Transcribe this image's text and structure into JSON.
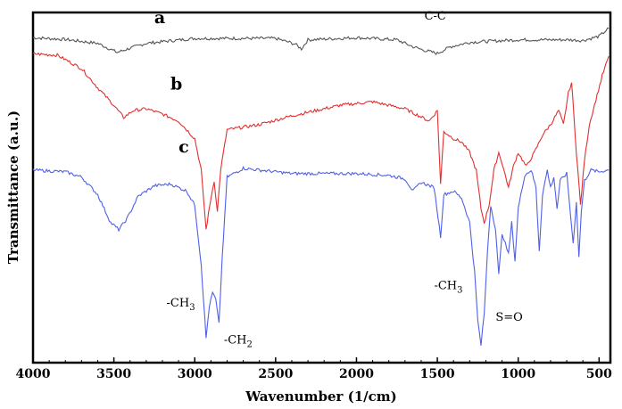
{
  "chart_data": {
    "type": "line",
    "xlabel": "Wavenumber (1/cm)",
    "ylabel": "Transmittance (a.u.)",
    "xlim": [
      4000,
      430
    ],
    "ylim": [
      0,
      100
    ],
    "x_ticks": [
      4000,
      3500,
      3000,
      2500,
      2000,
      1500,
      1000,
      500
    ],
    "y_ticks_shown": false,
    "legend": "none",
    "series": [
      {
        "name": "a",
        "color": "#555555",
        "points": [
          [
            4000,
            92.8
          ],
          [
            3800,
            92.3
          ],
          [
            3600,
            91.2
          ],
          [
            3480,
            88.6
          ],
          [
            3400,
            89.8
          ],
          [
            3300,
            91.2
          ],
          [
            3000,
            92.6
          ],
          [
            2500,
            92.6
          ],
          [
            2380,
            91.0
          ],
          [
            2340,
            89.6
          ],
          [
            2300,
            92.2
          ],
          [
            2000,
            92.8
          ],
          [
            1750,
            92.2
          ],
          [
            1650,
            90.2
          ],
          [
            1580,
            89.2
          ],
          [
            1500,
            88.3
          ],
          [
            1420,
            90.2
          ],
          [
            1300,
            91.5
          ],
          [
            1000,
            92.2
          ],
          [
            700,
            92.2
          ],
          [
            600,
            92.0
          ],
          [
            500,
            93.2
          ],
          [
            440,
            95.5
          ]
        ]
      },
      {
        "name": "b",
        "color": "#e03030",
        "points": [
          [
            4000,
            88.2
          ],
          [
            3850,
            87.8
          ],
          [
            3700,
            84.0
          ],
          [
            3600,
            78.5
          ],
          [
            3500,
            73.5
          ],
          [
            3440,
            70.0
          ],
          [
            3380,
            72.0
          ],
          [
            3300,
            72.5
          ],
          [
            3200,
            71.0
          ],
          [
            3100,
            69.0
          ],
          [
            3000,
            64.0
          ],
          [
            2960,
            55.0
          ],
          [
            2930,
            38.0
          ],
          [
            2900,
            47.0
          ],
          [
            2880,
            52.0
          ],
          [
            2860,
            43.0
          ],
          [
            2840,
            55.0
          ],
          [
            2800,
            66.5
          ],
          [
            2600,
            68.0
          ],
          [
            2400,
            70.5
          ],
          [
            2100,
            73.5
          ],
          [
            1900,
            74.5
          ],
          [
            1700,
            72.5
          ],
          [
            1550,
            69.0
          ],
          [
            1500,
            72.0
          ],
          [
            1480,
            51.0
          ],
          [
            1460,
            66.0
          ],
          [
            1400,
            64.0
          ],
          [
            1350,
            63.0
          ],
          [
            1300,
            60.0
          ],
          [
            1260,
            55.0
          ],
          [
            1230,
            44.0
          ],
          [
            1210,
            40.0
          ],
          [
            1180,
            45.0
          ],
          [
            1150,
            55.0
          ],
          [
            1120,
            60.0
          ],
          [
            1100,
            57.0
          ],
          [
            1060,
            50.0
          ],
          [
            1030,
            56.0
          ],
          [
            1000,
            60.0
          ],
          [
            950,
            56.0
          ],
          [
            900,
            60.0
          ],
          [
            850,
            65.0
          ],
          [
            800,
            68.0
          ],
          [
            750,
            72.0
          ],
          [
            720,
            68.0
          ],
          [
            690,
            77.0
          ],
          [
            670,
            80.0
          ],
          [
            640,
            60.0
          ],
          [
            615,
            45.0
          ],
          [
            590,
            58.0
          ],
          [
            560,
            68.0
          ],
          [
            520,
            75.0
          ],
          [
            480,
            82.0
          ],
          [
            440,
            87.5
          ]
        ]
      },
      {
        "name": "c",
        "color": "#5060e8",
        "points": [
          [
            4000,
            55.0
          ],
          [
            3800,
            54.5
          ],
          [
            3700,
            53.0
          ],
          [
            3600,
            48.0
          ],
          [
            3520,
            40.0
          ],
          [
            3470,
            38.0
          ],
          [
            3420,
            41.0
          ],
          [
            3350,
            47.5
          ],
          [
            3250,
            50.5
          ],
          [
            3150,
            51.0
          ],
          [
            3050,
            49.0
          ],
          [
            3000,
            45.0
          ],
          [
            2960,
            28.0
          ],
          [
            2930,
            7.0
          ],
          [
            2910,
            16.0
          ],
          [
            2890,
            20.0
          ],
          [
            2870,
            18.0
          ],
          [
            2850,
            11.0
          ],
          [
            2830,
            30.0
          ],
          [
            2800,
            53.0
          ],
          [
            2700,
            55.5
          ],
          [
            2400,
            54.0
          ],
          [
            2000,
            54.0
          ],
          [
            1800,
            53.5
          ],
          [
            1700,
            52.5
          ],
          [
            1650,
            49.0
          ],
          [
            1600,
            51.5
          ],
          [
            1520,
            50.0
          ],
          [
            1480,
            36.0
          ],
          [
            1460,
            48.0
          ],
          [
            1400,
            49.0
          ],
          [
            1350,
            47.0
          ],
          [
            1300,
            40.0
          ],
          [
            1270,
            26.0
          ],
          [
            1250,
            12.0
          ],
          [
            1230,
            5.0
          ],
          [
            1210,
            14.0
          ],
          [
            1190,
            32.0
          ],
          [
            1170,
            45.0
          ],
          [
            1140,
            38.0
          ],
          [
            1120,
            25.0
          ],
          [
            1100,
            37.0
          ],
          [
            1080,
            34.0
          ],
          [
            1060,
            31.0
          ],
          [
            1040,
            40.0
          ],
          [
            1020,
            29.0
          ],
          [
            1000,
            44.0
          ],
          [
            960,
            53.5
          ],
          [
            920,
            55.0
          ],
          [
            890,
            50.0
          ],
          [
            870,
            32.0
          ],
          [
            850,
            48.0
          ],
          [
            820,
            55.0
          ],
          [
            800,
            50.0
          ],
          [
            780,
            53.0
          ],
          [
            760,
            44.0
          ],
          [
            740,
            52.0
          ],
          [
            700,
            54.0
          ],
          [
            680,
            44.0
          ],
          [
            660,
            34.0
          ],
          [
            640,
            46.0
          ],
          [
            625,
            30.0
          ],
          [
            610,
            43.0
          ],
          [
            590,
            52.0
          ],
          [
            550,
            55.0
          ],
          [
            500,
            54.5
          ],
          [
            440,
            55.0
          ]
        ]
      }
    ],
    "annotations": [
      {
        "base": "C-C",
        "sub": "",
        "tail": "",
        "x": 1580,
        "y": 98.0
      },
      {
        "base": "-CH",
        "sub": "3",
        "tail": "",
        "x": 3175,
        "y": 16.0
      },
      {
        "base": "-CH",
        "sub": "2",
        "tail": "",
        "x": 2820,
        "y": 5.5
      },
      {
        "base": "-CH",
        "sub": "3",
        "tail": "",
        "x": 1520,
        "y": 21.0
      },
      {
        "base": "S=O",
        "sub": "",
        "tail": "",
        "x": 1140,
        "y": 12.0
      }
    ]
  }
}
